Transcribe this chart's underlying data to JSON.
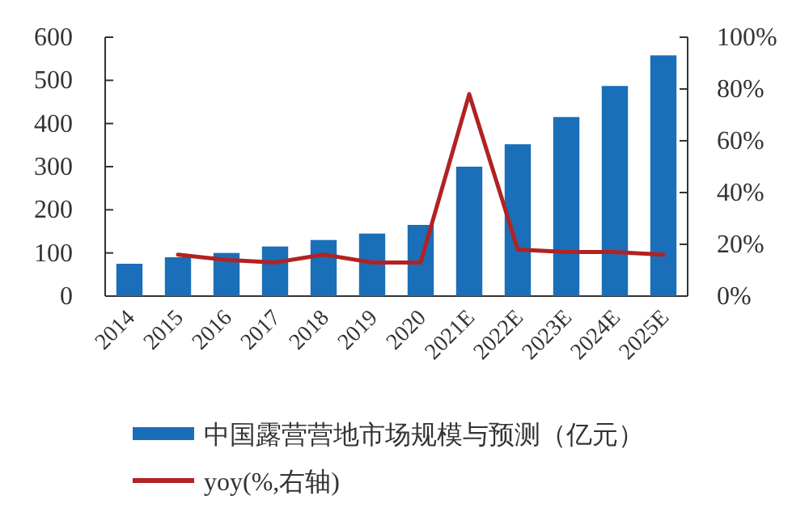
{
  "chart_data": {
    "type": "bar",
    "categories": [
      "2014",
      "2015",
      "2016",
      "2017",
      "2018",
      "2019",
      "2020",
      "2021E",
      "2022E",
      "2023E",
      "2024E",
      "2025E"
    ],
    "series": [
      {
        "name": "中国露营营地市场规模与预测（亿元）",
        "color": "#1a6fb8",
        "values": [
          75,
          90,
          100,
          115,
          130,
          145,
          165,
          300,
          352,
          415,
          487,
          558
        ]
      },
      {
        "name": "yoy(%,右轴)",
        "type": "line",
        "axis": "y2",
        "color": "#b22222",
        "values": [
          null,
          16,
          14,
          13,
          16,
          13,
          13,
          78,
          18,
          17,
          17,
          16
        ]
      }
    ],
    "ylim": [
      0,
      600
    ],
    "yticks": [
      0,
      100,
      200,
      300,
      400,
      500,
      600
    ],
    "y2lim": [
      0,
      100
    ],
    "y2ticks": [
      {
        "value": 0,
        "label": "0%"
      },
      {
        "value": 20,
        "label": "20%"
      },
      {
        "value": 40,
        "label": "40%"
      },
      {
        "value": 60,
        "label": "60%"
      },
      {
        "value": 80,
        "label": "80%"
      },
      {
        "value": 100,
        "label": "100%"
      }
    ],
    "legend": "bottom",
    "grid": false,
    "marker": "none"
  }
}
